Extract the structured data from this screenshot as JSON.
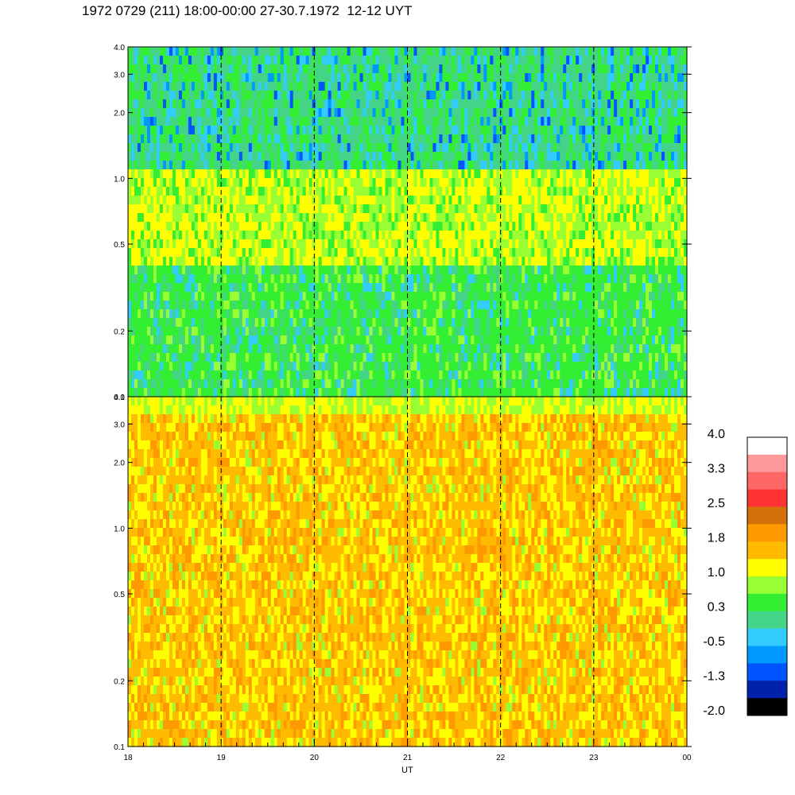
{
  "chart_data": {
    "type": "heatmap",
    "title": "1972 0729 (211) 18:00-00:00 27-30.7.1972  12-12 UYT",
    "xlabel": "UT",
    "x_ticks": [
      "18",
      "19",
      "20",
      "21",
      "22",
      "23",
      "00"
    ],
    "x_range_hours": [
      18,
      24
    ],
    "dashed_hour_lines": [
      19,
      20,
      21,
      22,
      23
    ],
    "y_scale": "log",
    "y_range": [
      0.1,
      4.0
    ],
    "panels": [
      {
        "name": "upper",
        "y_ticks": [
          "0.1",
          "0.2",
          "0.5",
          "1.0",
          "2.0",
          "3.0",
          "4.0"
        ],
        "y_tick_values": [
          0.1,
          0.2,
          0.5,
          1.0,
          2.0,
          3.0,
          4.0
        ]
      },
      {
        "name": "lower",
        "y_ticks": [
          "0.1",
          "0.2",
          "0.5",
          "1.0",
          "2.0",
          "3.0",
          "4.0"
        ],
        "y_tick_values": [
          0.1,
          0.2,
          0.5,
          1.0,
          2.0,
          3.0,
          4.0
        ]
      }
    ],
    "colorbar": {
      "labels": [
        "4.0",
        "3.3",
        "2.5",
        "1.8",
        "1.0",
        "0.3",
        "-0.5",
        "-1.3",
        "-2.0"
      ],
      "colors": [
        "#ffffff",
        "#ff9999",
        "#ff6666",
        "#ff3333",
        "#d4700a",
        "#ff9900",
        "#ffbb00",
        "#ffff00",
        "#99ff33",
        "#33ee33",
        "#44d488",
        "#33ccff",
        "#0099ff",
        "#0055ff",
        "#0022aa",
        "#000000"
      ]
    },
    "legend": "right"
  }
}
